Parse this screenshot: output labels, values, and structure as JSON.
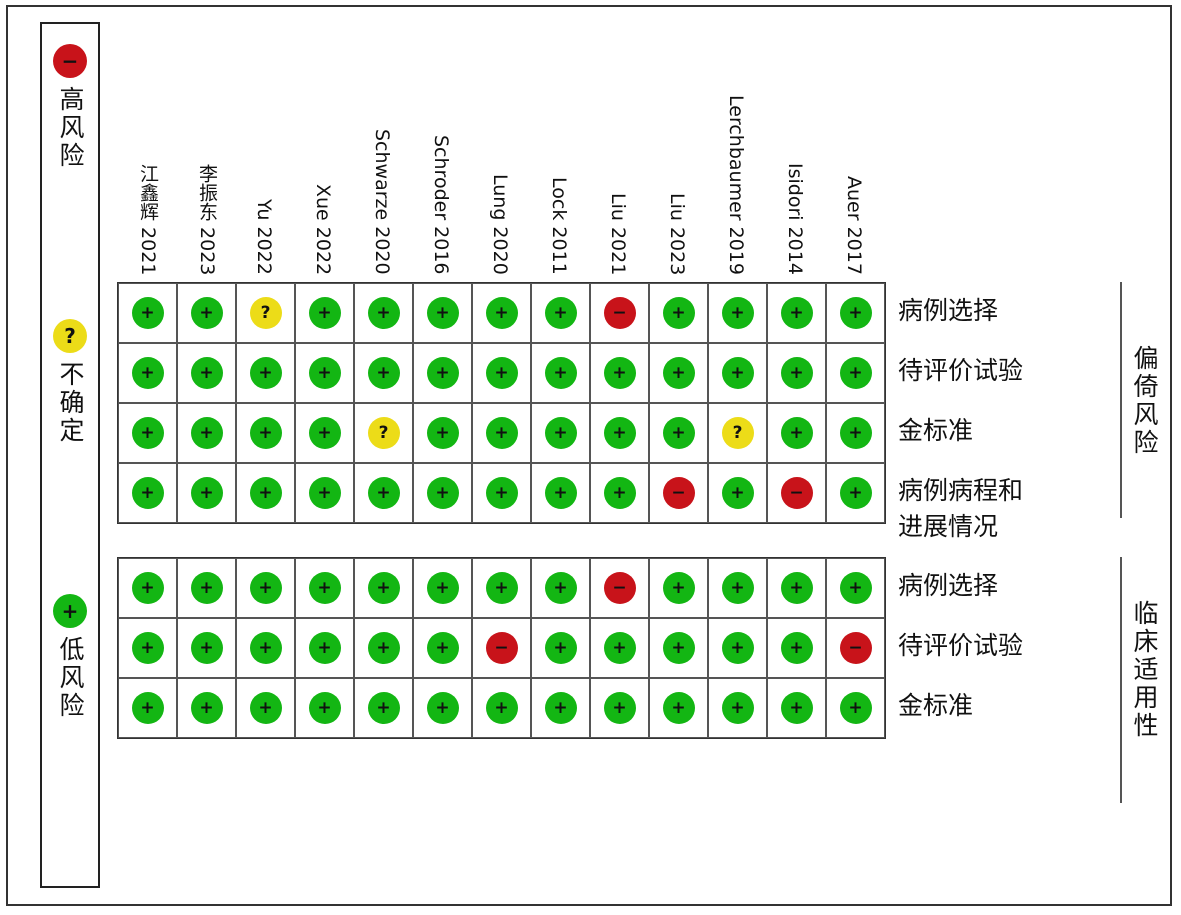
{
  "legend": {
    "high_symbol": "−",
    "high_label": "高风险",
    "unclear_symbol": "?",
    "unclear_label": "不确定",
    "low_symbol": "+",
    "low_label": "低风险"
  },
  "colors": {
    "low": "#13b613",
    "unclear": "#ecdc18",
    "high": "#c8131a"
  },
  "studies": [
    "江鑫辉 2021",
    "李振东 2023",
    "Yu 2022",
    "Xue 2022",
    "Schwarze 2020",
    "Schroder 2016",
    "Lung 2020",
    "Lock 2011",
    "Liu 2021",
    "Liu 2023",
    "Lerchbaumer 2019",
    "Isidori 2014",
    "Auer 2017"
  ],
  "groups": [
    {
      "label": "偏倚风险",
      "domains": [
        "病例选择",
        "待评价试验",
        "金标准",
        "病例病程和\n进展情况"
      ],
      "ratings": [
        [
          "low",
          "low",
          "unclear",
          "low",
          "low",
          "low",
          "low",
          "low",
          "high",
          "low",
          "low",
          "low",
          "low"
        ],
        [
          "low",
          "low",
          "low",
          "low",
          "low",
          "low",
          "low",
          "low",
          "low",
          "low",
          "low",
          "low",
          "low"
        ],
        [
          "low",
          "low",
          "low",
          "low",
          "unclear",
          "low",
          "low",
          "low",
          "low",
          "low",
          "unclear",
          "low",
          "low"
        ],
        [
          "low",
          "low",
          "low",
          "low",
          "low",
          "low",
          "low",
          "low",
          "low",
          "high",
          "low",
          "high",
          "low"
        ]
      ]
    },
    {
      "label": "临床适用性",
      "domains": [
        "病例选择",
        "待评价试验",
        "金标准"
      ],
      "ratings": [
        [
          "low",
          "low",
          "low",
          "low",
          "low",
          "low",
          "low",
          "low",
          "high",
          "low",
          "low",
          "low",
          "low"
        ],
        [
          "low",
          "low",
          "low",
          "low",
          "low",
          "low",
          "high",
          "low",
          "low",
          "low",
          "low",
          "low",
          "high"
        ],
        [
          "low",
          "low",
          "low",
          "low",
          "low",
          "low",
          "low",
          "low",
          "low",
          "low",
          "low",
          "low",
          "low"
        ]
      ]
    }
  ]
}
